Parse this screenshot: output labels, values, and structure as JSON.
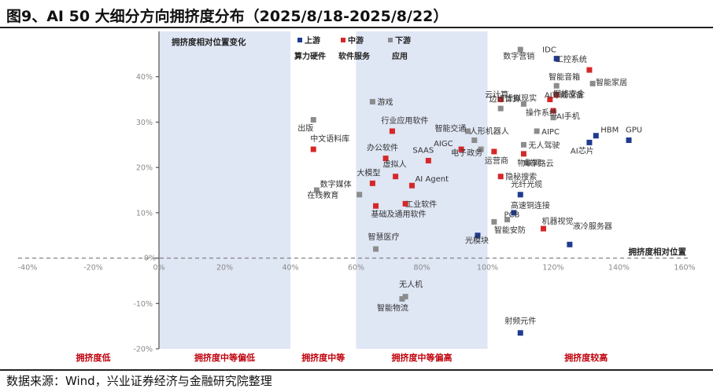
{
  "title": "图9、AI 50 大细分方向拥挤度分布（2025/8/18-2025/8/22）",
  "source": "数据来源：Wind，兴业证券经济与金融研究院整理",
  "colors": {
    "upstream": "#1f3b8f",
    "midstream": "#d62728",
    "downstream": "#8c8c8c",
    "band": "#dfe6f4",
    "zone_label": "#c0000b"
  },
  "chart_data": {
    "type": "scatter",
    "title": "",
    "xlabel": "拥挤度相对位置",
    "ylabel": "拥挤度相对位置变化",
    "xlim": [
      -40,
      160
    ],
    "ylim": [
      -20,
      50
    ],
    "x_ticks": [
      -40,
      -20,
      0,
      20,
      40,
      60,
      80,
      100,
      120,
      140,
      160
    ],
    "x_tick_labels": [
      "-40%",
      "-20%",
      "0%",
      "20%",
      "40%",
      "60%",
      "80%",
      "100%",
      "120%",
      "140%",
      "160%"
    ],
    "y_ticks": [
      -20,
      -10,
      0,
      10,
      20,
      30,
      40
    ],
    "y_tick_labels": [
      "-20%",
      "-10%",
      "0%",
      "10%",
      "20%",
      "30%",
      "40%"
    ],
    "bands": [
      [
        0,
        40
      ],
      [
        60,
        100
      ]
    ],
    "zones": [
      {
        "label": "拥挤度低",
        "x": -20
      },
      {
        "label": "拥挤度中等偏低",
        "x": 20
      },
      {
        "label": "拥挤度中等",
        "x": 50
      },
      {
        "label": "拥挤度中等偏高",
        "x": 80
      },
      {
        "label": "拥挤度较高",
        "x": 130
      }
    ],
    "legend": [
      {
        "key": "upstream",
        "name": "上游",
        "sub": "算力硬件"
      },
      {
        "key": "midstream",
        "name": "中游",
        "sub": "软件服务"
      },
      {
        "key": "downstream",
        "name": "下游",
        "sub": "应用"
      }
    ],
    "series": [
      {
        "key": "upstream",
        "points": [
          {
            "label": "IDC",
            "x": 121,
            "y": 44
          },
          {
            "label": "HBM",
            "x": 133,
            "y": 27
          },
          {
            "label": "GPU",
            "x": 143,
            "y": 26
          },
          {
            "label": "AI芯片",
            "x": 131,
            "y": 25.5
          },
          {
            "label": "光纤光缆",
            "x": 110,
            "y": 14
          },
          {
            "label": "高速铜连接",
            "x": 108,
            "y": 10
          },
          {
            "label": "液冷服务器",
            "x": 125,
            "y": 3
          },
          {
            "label": "光模块",
            "x": 97,
            "y": 5
          },
          {
            "label": "射频元件",
            "x": 110,
            "y": -16.5
          }
        ]
      },
      {
        "key": "midstream",
        "points": [
          {
            "label": "工控系统",
            "x": 131,
            "y": 41.5
          },
          {
            "label": "网络安全",
            "x": 121,
            "y": 36
          },
          {
            "label": "虚拟现实",
            "x": 104,
            "y": 35
          },
          {
            "label": "AI穿戴设备",
            "x": 119,
            "y": 35
          },
          {
            "label": "操作系统",
            "x": 120,
            "y": 32.5
          },
          {
            "label": "行业应用软件",
            "x": 71,
            "y": 28
          },
          {
            "label": "AIGC",
            "x": 92,
            "y": 24
          },
          {
            "label": "运营商",
            "x": 102,
            "y": 23.5
          },
          {
            "label": "物联网",
            "x": 111,
            "y": 23
          },
          {
            "label": "中文语料库",
            "x": 47,
            "y": 24
          },
          {
            "label": "办公软件",
            "x": 69,
            "y": 22
          },
          {
            "label": "SAAS",
            "x": 82,
            "y": 21.5
          },
          {
            "label": "隐秘搜索",
            "x": 104,
            "y": 18
          },
          {
            "label": "虚拟人",
            "x": 72,
            "y": 18
          },
          {
            "label": "AI Agent",
            "x": 77,
            "y": 16
          },
          {
            "label": "大模型",
            "x": 65,
            "y": 16.5
          },
          {
            "label": "基础及通用软件",
            "x": 66,
            "y": 11.5
          },
          {
            "label": "工业软件",
            "x": 75,
            "y": 12
          },
          {
            "label": "机器视觉",
            "x": 117,
            "y": 6.5
          }
        ]
      },
      {
        "key": "downstream",
        "points": [
          {
            "label": "数字营销",
            "x": 110,
            "y": 46
          },
          {
            "label": "智能音箱",
            "x": 121,
            "y": 38
          },
          {
            "label": "智能家居",
            "x": 132,
            "y": 38.5
          },
          {
            "label": "云计算",
            "x": 104,
            "y": 33
          },
          {
            "label": "AI手机",
            "x": 120,
            "y": 31
          },
          {
            "label": "边缘计算",
            "x": 111,
            "y": 34
          },
          {
            "label": "游戏",
            "x": 65,
            "y": 34.5
          },
          {
            "label": "出版",
            "x": 47,
            "y": 30.5
          },
          {
            "label": "智能交通",
            "x": 94,
            "y": 28
          },
          {
            "label": "AIPC",
            "x": 115,
            "y": 28
          },
          {
            "label": "人形机器人",
            "x": 96,
            "y": 26
          },
          {
            "label": "电子政务",
            "x": 98,
            "y": 24
          },
          {
            "label": "无人驾驶",
            "x": 111,
            "y": 25
          },
          {
            "label": "车路云",
            "x": 112,
            "y": 21
          },
          {
            "label": "数字媒体",
            "x": 61,
            "y": 14
          },
          {
            "label": "在线教育",
            "x": 48,
            "y": 15
          },
          {
            "label": "智能安防",
            "x": 102,
            "y": 8
          },
          {
            "label": "PCB",
            "x": 106,
            "y": 8.5
          },
          {
            "label": "智慧医疗",
            "x": 66,
            "y": 2
          },
          {
            "label": "无人机",
            "x": 75,
            "y": -8.5
          },
          {
            "label": "智能物流",
            "x": 74,
            "y": -9
          }
        ]
      }
    ]
  }
}
